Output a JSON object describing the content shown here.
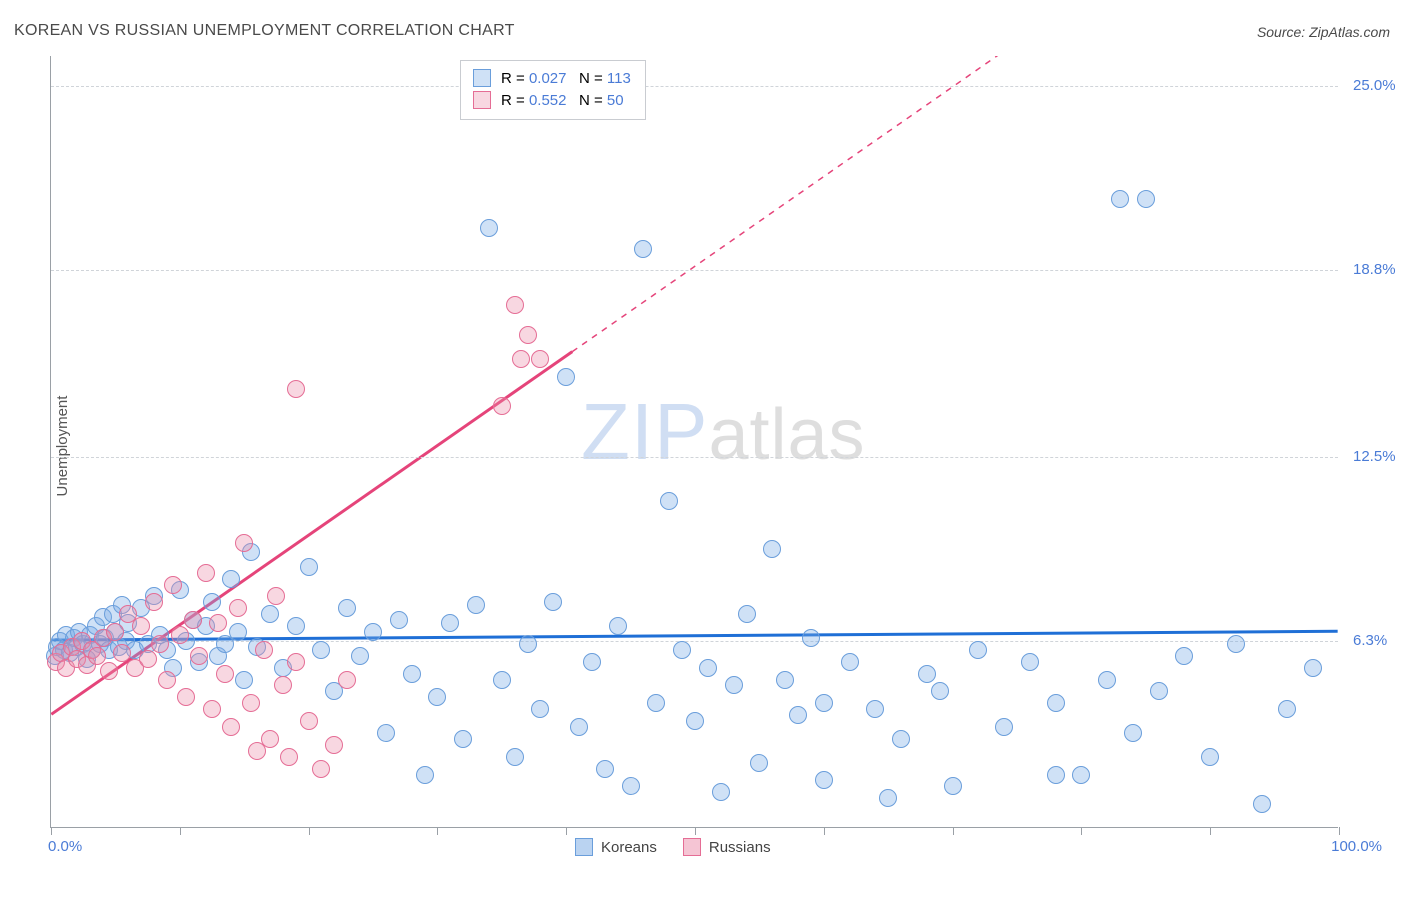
{
  "title": "KOREAN VS RUSSIAN UNEMPLOYMENT CORRELATION CHART",
  "source": "Source: ZipAtlas.com",
  "ylabel": "Unemployment",
  "watermark": {
    "big": "ZIP",
    "rest": "atlas"
  },
  "chart": {
    "type": "scatter",
    "xlim": [
      0,
      100
    ],
    "ylim": [
      0,
      26
    ],
    "x_min_label": "0.0%",
    "x_max_label": "100.0%",
    "ytick_values": [
      6.3,
      12.5,
      18.8,
      25.0
    ],
    "ytick_labels": [
      "6.3%",
      "12.5%",
      "18.8%",
      "25.0%"
    ],
    "xtick_values": [
      0,
      10,
      20,
      30,
      40,
      50,
      60,
      70,
      80,
      90,
      100
    ],
    "background_color": "#ffffff",
    "grid_color": "#d0d4d9",
    "axis_color": "#9aa0a6",
    "tick_label_color": "#4a7bd6",
    "marker_size": 18,
    "series": [
      {
        "name": "Koreans",
        "fill": "rgba(118,168,228,0.35)",
        "stroke": "#6a9edb",
        "R": "0.027",
        "N": "113",
        "trend": {
          "color": "#1f6fd6",
          "width": 3,
          "y_at_x0": 6.3,
          "y_at_x100": 6.6,
          "style": "solid"
        },
        "points": [
          [
            0.3,
            5.8
          ],
          [
            0.5,
            6.1
          ],
          [
            0.7,
            6.3
          ],
          [
            1.0,
            6.0
          ],
          [
            1.2,
            6.5
          ],
          [
            1.5,
            5.9
          ],
          [
            1.8,
            6.4
          ],
          [
            2.0,
            6.1
          ],
          [
            2.2,
            6.6
          ],
          [
            2.5,
            6.2
          ],
          [
            2.8,
            5.7
          ],
          [
            3.0,
            6.5
          ],
          [
            3.2,
            6.0
          ],
          [
            3.5,
            6.8
          ],
          [
            3.8,
            6.2
          ],
          [
            4.0,
            7.1
          ],
          [
            4.2,
            6.4
          ],
          [
            4.5,
            6.0
          ],
          [
            4.8,
            7.2
          ],
          [
            5.0,
            6.6
          ],
          [
            5.3,
            6.1
          ],
          [
            5.5,
            7.5
          ],
          [
            5.8,
            6.3
          ],
          [
            6.0,
            6.9
          ],
          [
            6.5,
            6.0
          ],
          [
            7.0,
            7.4
          ],
          [
            7.5,
            6.2
          ],
          [
            8.0,
            7.8
          ],
          [
            8.5,
            6.5
          ],
          [
            9.0,
            6.0
          ],
          [
            9.5,
            5.4
          ],
          [
            10.0,
            8.0
          ],
          [
            10.5,
            6.3
          ],
          [
            11.0,
            7.0
          ],
          [
            11.5,
            5.6
          ],
          [
            12.0,
            6.8
          ],
          [
            12.5,
            7.6
          ],
          [
            13.0,
            5.8
          ],
          [
            13.5,
            6.2
          ],
          [
            14.0,
            8.4
          ],
          [
            14.5,
            6.6
          ],
          [
            15.0,
            5.0
          ],
          [
            15.5,
            9.3
          ],
          [
            16.0,
            6.1
          ],
          [
            17.0,
            7.2
          ],
          [
            18.0,
            5.4
          ],
          [
            19.0,
            6.8
          ],
          [
            20.0,
            8.8
          ],
          [
            21.0,
            6.0
          ],
          [
            22.0,
            4.6
          ],
          [
            23.0,
            7.4
          ],
          [
            24.0,
            5.8
          ],
          [
            25.0,
            6.6
          ],
          [
            26.0,
            3.2
          ],
          [
            27.0,
            7.0
          ],
          [
            28.0,
            5.2
          ],
          [
            29.0,
            1.8
          ],
          [
            30.0,
            4.4
          ],
          [
            31.0,
            6.9
          ],
          [
            32.0,
            3.0
          ],
          [
            33.0,
            7.5
          ],
          [
            34.0,
            20.2
          ],
          [
            35.0,
            5.0
          ],
          [
            36.0,
            2.4
          ],
          [
            37.0,
            6.2
          ],
          [
            38.0,
            4.0
          ],
          [
            39.0,
            7.6
          ],
          [
            40.0,
            15.2
          ],
          [
            41.0,
            3.4
          ],
          [
            42.0,
            5.6
          ],
          [
            43.0,
            2.0
          ],
          [
            44.0,
            6.8
          ],
          [
            45.0,
            1.4
          ],
          [
            46.0,
            19.5
          ],
          [
            47.0,
            4.2
          ],
          [
            48.0,
            11.0
          ],
          [
            49.0,
            6.0
          ],
          [
            50.0,
            3.6
          ],
          [
            51.0,
            5.4
          ],
          [
            52.0,
            1.2
          ],
          [
            53.0,
            4.8
          ],
          [
            54.0,
            7.2
          ],
          [
            55.0,
            2.2
          ],
          [
            56.0,
            9.4
          ],
          [
            57.0,
            5.0
          ],
          [
            58.0,
            3.8
          ],
          [
            59.0,
            6.4
          ],
          [
            60.0,
            1.6
          ],
          [
            62.0,
            5.6
          ],
          [
            64.0,
            4.0
          ],
          [
            65.0,
            1.0
          ],
          [
            66.0,
            3.0
          ],
          [
            68.0,
            5.2
          ],
          [
            69.0,
            4.6
          ],
          [
            70.0,
            1.4
          ],
          [
            72.0,
            6.0
          ],
          [
            74.0,
            3.4
          ],
          [
            76.0,
            5.6
          ],
          [
            78.0,
            4.2
          ],
          [
            80.0,
            1.8
          ],
          [
            82.0,
            5.0
          ],
          [
            84.0,
            3.2
          ],
          [
            83.0,
            21.2
          ],
          [
            85.0,
            21.2
          ],
          [
            86.0,
            4.6
          ],
          [
            88.0,
            5.8
          ],
          [
            90.0,
            2.4
          ],
          [
            92.0,
            6.2
          ],
          [
            94.0,
            0.8
          ],
          [
            96.0,
            4.0
          ],
          [
            98.0,
            5.4
          ],
          [
            78.0,
            1.8
          ],
          [
            60.0,
            4.2
          ]
        ]
      },
      {
        "name": "Russians",
        "fill": "rgba(236,140,170,0.35)",
        "stroke": "#e56d95",
        "R": "0.552",
        "N": "50",
        "trend": {
          "color": "#e5447a",
          "width": 3,
          "y_at_x0": 3.8,
          "y_at_x100": 34.0,
          "x_solid_end": 40.5,
          "style": "dashed_after"
        },
        "points": [
          [
            0.4,
            5.6
          ],
          [
            0.8,
            5.9
          ],
          [
            1.2,
            5.4
          ],
          [
            1.6,
            6.1
          ],
          [
            2.0,
            5.7
          ],
          [
            2.4,
            6.3
          ],
          [
            2.8,
            5.5
          ],
          [
            3.2,
            6.0
          ],
          [
            3.6,
            5.8
          ],
          [
            4.0,
            6.4
          ],
          [
            4.5,
            5.3
          ],
          [
            5.0,
            6.6
          ],
          [
            5.5,
            5.9
          ],
          [
            6.0,
            7.2
          ],
          [
            6.5,
            5.4
          ],
          [
            7.0,
            6.8
          ],
          [
            7.5,
            5.7
          ],
          [
            8.0,
            7.6
          ],
          [
            8.5,
            6.2
          ],
          [
            9.0,
            5.0
          ],
          [
            9.5,
            8.2
          ],
          [
            10.0,
            6.5
          ],
          [
            10.5,
            4.4
          ],
          [
            11.0,
            7.0
          ],
          [
            11.5,
            5.8
          ],
          [
            12.0,
            8.6
          ],
          [
            12.5,
            4.0
          ],
          [
            13.0,
            6.9
          ],
          [
            13.5,
            5.2
          ],
          [
            14.0,
            3.4
          ],
          [
            14.5,
            7.4
          ],
          [
            15.0,
            9.6
          ],
          [
            15.5,
            4.2
          ],
          [
            16.0,
            2.6
          ],
          [
            16.5,
            6.0
          ],
          [
            17.0,
            3.0
          ],
          [
            17.5,
            7.8
          ],
          [
            18.0,
            4.8
          ],
          [
            18.5,
            2.4
          ],
          [
            19.0,
            5.6
          ],
          [
            20.0,
            3.6
          ],
          [
            21.0,
            2.0
          ],
          [
            22.0,
            2.8
          ],
          [
            19.0,
            14.8
          ],
          [
            23.0,
            5.0
          ],
          [
            35.0,
            14.2
          ],
          [
            36.0,
            17.6
          ],
          [
            36.5,
            15.8
          ],
          [
            37.0,
            16.6
          ],
          [
            38.0,
            15.8
          ]
        ]
      }
    ]
  },
  "legend_bottom": [
    {
      "label": "Koreans",
      "fill": "rgba(118,168,228,0.5)",
      "stroke": "#6a9edb"
    },
    {
      "label": "Russians",
      "fill": "rgba(236,140,170,0.5)",
      "stroke": "#e56d95"
    }
  ]
}
